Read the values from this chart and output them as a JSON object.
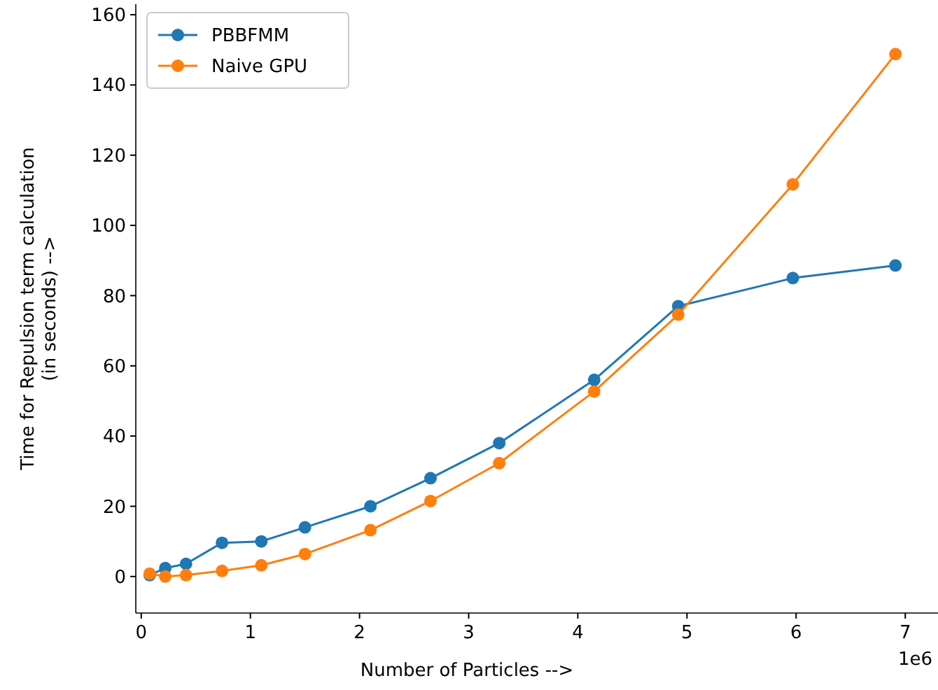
{
  "chart_data": {
    "type": "line",
    "xlabel": "Number of Particles -->",
    "ylabel": "Time for Repulsion term calculation\n(in seconds) -->",
    "xlim": [
      -0.05,
      7.3
    ],
    "ylim": [
      -10.4,
      163
    ],
    "xticks": [
      0,
      1,
      2,
      3,
      4,
      5,
      6,
      7
    ],
    "yticks": [
      0,
      20,
      40,
      60,
      80,
      100,
      120,
      140,
      160
    ],
    "marker": "circle",
    "legend": "top left",
    "grid": false,
    "annotations": [
      "1e6"
    ],
    "series": [
      {
        "name": "PBBFMM",
        "color": "#1f77b4",
        "x": [
          0.077,
          0.22,
          0.41,
          0.74,
          1.1,
          1.5,
          2.1,
          2.65,
          3.28,
          4.15,
          4.92,
          5.97,
          6.91
        ],
        "values": [
          0.4,
          2.4,
          3.6,
          9.6,
          10,
          14,
          20,
          28,
          38,
          56,
          77,
          85,
          88.6
        ]
      },
      {
        "name": "Naive GPU",
        "color": "#ff7f0e",
        "x": [
          0.077,
          0.22,
          0.41,
          0.74,
          1.1,
          1.5,
          2.1,
          2.65,
          3.28,
          4.15,
          4.92,
          5.97,
          6.91
        ],
        "values": [
          0.8,
          0,
          0.4,
          1.6,
          3.2,
          6.4,
          13.2,
          21.5,
          32.3,
          52.7,
          74.6,
          111.7,
          148.8
        ]
      }
    ]
  }
}
